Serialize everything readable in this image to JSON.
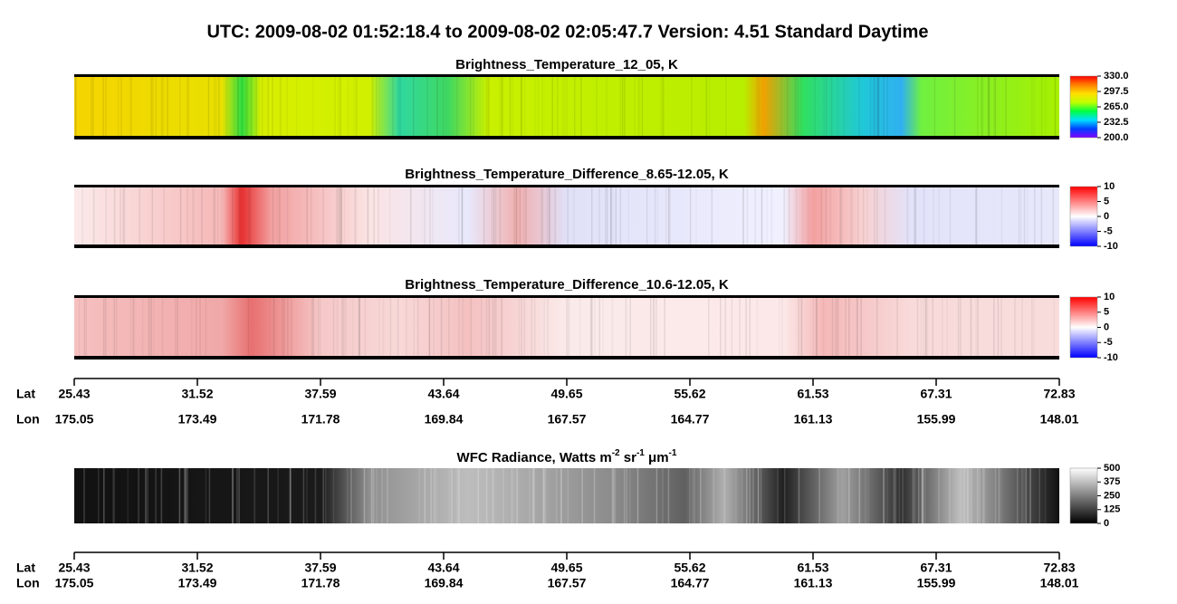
{
  "title": "UTC:  2009-08-02   01:52:18.4  to  2009-08-02   02:05:47.7    Version: 4.51  Standard Daytime",
  "panels": [
    {
      "title": [
        {
          "text": "Brightness_Temperature_12_05, K"
        }
      ],
      "colorbar": {
        "colormap": "rainbow",
        "lim": [
          200,
          330
        ],
        "ticks": [
          {
            "value": 330,
            "label": "330.0"
          },
          {
            "value": 297.5,
            "label": "297.5"
          },
          {
            "value": 265,
            "label": "265.0"
          },
          {
            "value": 232.5,
            "label": "232.5"
          },
          {
            "value": 200,
            "label": "200.0"
          }
        ]
      }
    },
    {
      "title": [
        {
          "text": "Brightness_Temperature_Difference_8.65-12.05, K"
        }
      ],
      "colorbar": {
        "colormap": "bwr",
        "lim": [
          -10,
          10
        ],
        "ticks": [
          10,
          5,
          0,
          -5,
          -10
        ]
      }
    },
    {
      "title": [
        {
          "text": "Brightness_Temperature_Difference_10.6-12.05, K"
        }
      ],
      "colorbar": {
        "colormap": "bwr",
        "lim": [
          -10,
          10
        ],
        "ticks": [
          10,
          5,
          0,
          -5,
          -10
        ]
      }
    },
    {
      "title": [
        {
          "text": "WFC Radiance, Watts m"
        },
        {
          "text": "-2",
          "sup": true
        },
        {
          "text": " sr"
        },
        {
          "text": "-1",
          "sup": true
        },
        {
          "text": " μm"
        },
        {
          "text": "-1",
          "sup": true
        }
      ],
      "colorbar": {
        "colormap": "gray",
        "lim": [
          0,
          500
        ],
        "ticks": [
          500,
          375,
          250,
          125,
          0
        ]
      }
    }
  ],
  "axes": [
    {
      "rows": [
        {
          "label": "Lat",
          "values": [
            25.43,
            31.52,
            37.59,
            43.64,
            49.65,
            55.62,
            61.53,
            67.31,
            72.83
          ]
        },
        {
          "label": "Lon",
          "values": [
            175.05,
            173.49,
            171.78,
            169.84,
            167.57,
            164.77,
            161.13,
            155.99,
            148.01
          ]
        }
      ]
    },
    {
      "rows": [
        {
          "label": "Lat",
          "values": [
            25.43,
            31.52,
            37.59,
            43.64,
            49.65,
            55.62,
            61.53,
            67.31,
            72.83
          ]
        },
        {
          "label": "Lon",
          "values": [
            175.05,
            173.49,
            171.78,
            169.84,
            167.57,
            164.77,
            161.13,
            155.99,
            148.01
          ]
        }
      ]
    }
  ]
}
